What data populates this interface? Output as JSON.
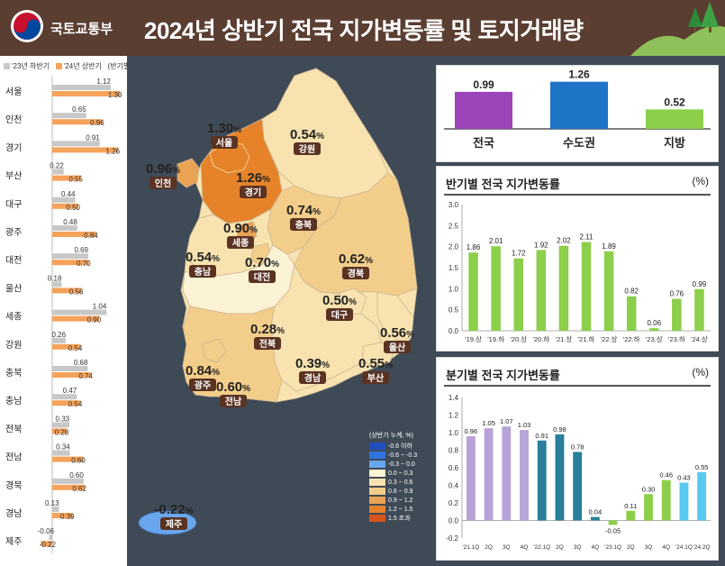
{
  "header": {
    "org": "국토교통부",
    "title": "2024년 상반기 전국 지가변동률 및 토지거래량"
  },
  "regional": {
    "legend": {
      "prev": "'23년 하반기",
      "curr": "'24년 상반기",
      "note": "(반기별 변동률, %)"
    },
    "colors": {
      "prev": "#c8c8c8",
      "curr": "#f5a25a"
    },
    "rows": [
      {
        "region": "서울",
        "prev": 1.12,
        "curr": 1.3,
        "prev_label": "1.12",
        "curr_label": "1.30"
      },
      {
        "region": "인천",
        "prev": 0.65,
        "curr": 0.96,
        "prev_label": "0.65",
        "curr_label": "0.96"
      },
      {
        "region": "경기",
        "prev": 0.91,
        "curr": 1.26,
        "prev_label": "0.91",
        "curr_label": "1.26"
      },
      {
        "region": "부산",
        "prev": 0.22,
        "curr": 0.55,
        "prev_label": "0.22",
        "curr_label": "0.55"
      },
      {
        "region": "대구",
        "prev": 0.44,
        "curr": 0.5,
        "prev_label": "0.44",
        "curr_label": "0.50"
      },
      {
        "region": "광주",
        "prev": 0.48,
        "curr": 0.84,
        "prev_label": "0.48",
        "curr_label": "0.84"
      },
      {
        "region": "대전",
        "prev": 0.69,
        "curr": 0.7,
        "prev_label": "0.69",
        "curr_label": "0.70"
      },
      {
        "region": "울산",
        "prev": 0.18,
        "curr": 0.56,
        "prev_label": "0.18",
        "curr_label": "0.56"
      },
      {
        "region": "세종",
        "prev": 1.04,
        "curr": 0.9,
        "prev_label": "1.04",
        "curr_label": "0.90"
      },
      {
        "region": "강원",
        "prev": 0.26,
        "curr": 0.54,
        "prev_label": "0.26",
        "curr_label": "0.54"
      },
      {
        "region": "충북",
        "prev": 0.68,
        "curr": 0.74,
        "prev_label": "0.68",
        "curr_label": "0.74"
      },
      {
        "region": "충남",
        "prev": 0.47,
        "curr": 0.54,
        "prev_label": "0.47",
        "curr_label": "0.54"
      },
      {
        "region": "전북",
        "prev": 0.33,
        "curr": 0.28,
        "prev_label": "0.33",
        "curr_label": "0.28"
      },
      {
        "region": "전남",
        "prev": 0.34,
        "curr": 0.6,
        "prev_label": "0.34",
        "curr_label": "0.60"
      },
      {
        "region": "경북",
        "prev": 0.6,
        "curr": 0.62,
        "prev_label": "0.60",
        "curr_label": "0.62"
      },
      {
        "region": "경남",
        "prev": 0.13,
        "curr": 0.39,
        "prev_label": "0.13",
        "curr_label": "0.39"
      },
      {
        "region": "제주",
        "prev": -0.06,
        "curr": -0.22,
        "prev_label": "-0.06",
        "curr_label": "-0.22"
      }
    ]
  },
  "map": {
    "regions": [
      {
        "name": "서울",
        "value": "1.30",
        "unit": "%"
      },
      {
        "name": "인천",
        "value": "0.96",
        "unit": "%"
      },
      {
        "name": "경기",
        "value": "1.26",
        "unit": "%"
      },
      {
        "name": "강원",
        "value": "0.54",
        "unit": "%"
      },
      {
        "name": "세종",
        "value": "0.90",
        "unit": "%"
      },
      {
        "name": "충북",
        "value": "0.74",
        "unit": "%"
      },
      {
        "name": "충남",
        "value": "0.54",
        "unit": "%"
      },
      {
        "name": "대전",
        "value": "0.70",
        "unit": "%"
      },
      {
        "name": "경북",
        "value": "0.62",
        "unit": "%"
      },
      {
        "name": "대구",
        "value": "0.50",
        "unit": "%"
      },
      {
        "name": "전북",
        "value": "0.28",
        "unit": "%"
      },
      {
        "name": "울산",
        "value": "0.56",
        "unit": "%"
      },
      {
        "name": "경남",
        "value": "0.39",
        "unit": "%"
      },
      {
        "name": "부산",
        "value": "0.55",
        "unit": "%"
      },
      {
        "name": "광주",
        "value": "0.84",
        "unit": "%"
      },
      {
        "name": "전남",
        "value": "0.60",
        "unit": "%"
      },
      {
        "name": "제주",
        "value": "-0.22",
        "unit": "%"
      }
    ],
    "legend_title": "(상반기 누계, %)",
    "legend": [
      {
        "label": "-0.6 이하",
        "color": "#1f4fbf"
      },
      {
        "label": "-0.6 ~ -0.3",
        "color": "#2f74df"
      },
      {
        "label": "-0.3 ~ 0.0",
        "color": "#6aa6ee"
      },
      {
        "label": "0.0 ~ 0.3",
        "color": "#fbf3d4"
      },
      {
        "label": "0.3 ~ 0.6",
        "color": "#f8e3b0"
      },
      {
        "label": "0.6 ~ 0.9",
        "color": "#f3cd8a"
      },
      {
        "label": "0.9 ~ 1.2",
        "color": "#eaa255"
      },
      {
        "label": "1.2 ~ 1.5",
        "color": "#e6832a"
      },
      {
        "label": "1.5 초과",
        "color": "#d9531e"
      }
    ]
  },
  "chart_data": [
    {
      "type": "bar",
      "categories": [
        "전국",
        "수도권",
        "지방"
      ],
      "values": [
        0.99,
        1.26,
        0.52
      ],
      "labels": [
        "0.99",
        "1.26",
        "0.52"
      ],
      "colors": [
        "#9b45b8",
        "#1e74c6",
        "#8ccf4a"
      ]
    },
    {
      "type": "bar",
      "title": "반기별 전국 지가변동률",
      "unit": "(%)",
      "categories": [
        "'19.상",
        "'19.하",
        "'20.상",
        "'20.하",
        "'21.상",
        "'21.하",
        "'22.상",
        "'22.하",
        "'23.상",
        "'23.하",
        "'24.상"
      ],
      "values": [
        1.86,
        2.01,
        1.72,
        1.92,
        2.02,
        2.11,
        1.89,
        0.82,
        0.06,
        0.76,
        0.99
      ],
      "labels": [
        "1.86",
        "2.01",
        "1.72",
        "1.92",
        "2.02",
        "2.11",
        "1.89",
        "0.82",
        "0.06",
        "0.76",
        "0.99"
      ],
      "ylim": [
        0,
        3.0
      ],
      "yticks": [
        "0.0",
        "0.5",
        "1.0",
        "1.5",
        "2.0",
        "2.5",
        "3.0"
      ],
      "color": "#8ccf4a"
    },
    {
      "type": "bar",
      "title": "분기별 전국 지가변동률",
      "unit": "(%)",
      "categories": [
        "'21.1Q",
        "2Q",
        "3Q",
        "4Q",
        "'22.1Q",
        "2Q",
        "3Q",
        "4Q",
        "'23.1Q",
        "2Q",
        "3Q",
        "4Q",
        "'24.1Q",
        "'24.2Q"
      ],
      "values": [
        0.96,
        1.05,
        1.07,
        1.03,
        0.91,
        0.98,
        0.78,
        0.04,
        -0.05,
        0.11,
        0.3,
        0.46,
        0.43,
        0.55
      ],
      "labels": [
        "0.96",
        "1.05",
        "1.07",
        "1.03",
        "0.91",
        "0.98",
        "0.78",
        "0.04",
        "-0.05",
        "0.11",
        "0.30",
        "0.46",
        "0.43",
        "0.55"
      ],
      "colors": [
        "#b7a3d6",
        "#b7a3d6",
        "#b7a3d6",
        "#b7a3d6",
        "#2a7f9a",
        "#2a7f9a",
        "#2a7f9a",
        "#2a7f9a",
        "#8ccf4a",
        "#8ccf4a",
        "#8ccf4a",
        "#8ccf4a",
        "#58c9f0",
        "#58c9f0"
      ],
      "ylim": [
        -0.2,
        1.4
      ],
      "yticks": [
        "-0.2",
        "0.0",
        "0.2",
        "0.4",
        "0.6",
        "0.8",
        "1.0",
        "1.2",
        "1.4"
      ]
    }
  ]
}
